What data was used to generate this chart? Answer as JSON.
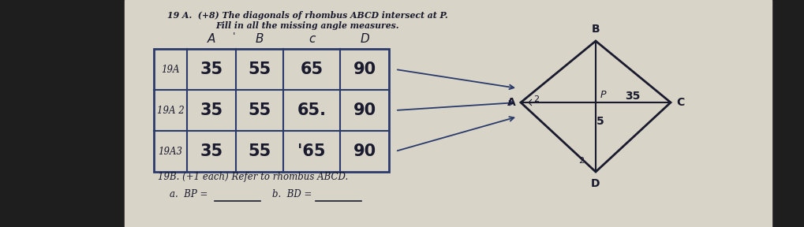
{
  "title_line1": "19 A.  (+8) The diagonals of rhombus ABCD intersect at P.",
  "title_line2": "Fill in all the missing angle measures.",
  "bg_dark": "#1e1e1e",
  "paper_color": "#d8d4c8",
  "table_row_labels": [
    "19A",
    "19A 2",
    "19A3"
  ],
  "col_headers": [
    "A",
    "B",
    "c",
    "D"
  ],
  "table_data": [
    [
      "35",
      "55",
      "65",
      "90"
    ],
    [
      "35",
      "55",
      "65.",
      "90"
    ],
    [
      "35",
      "55",
      "'65",
      "90"
    ]
  ],
  "part_b_line1": "19B. (+1 each) Refer to rhombus ABCD.",
  "part_b_a": "a.  BP =",
  "part_b_b": "b.  BD =",
  "rhombus_35": "35",
  "rhombus_5": "5",
  "rhombus_P": "P",
  "rhombus_A": "A",
  "rhombus_B": "B",
  "rhombus_C": "C",
  "rhombus_D": "D",
  "arrow_color": "#2a3a6a",
  "table_border_color": "#2a3a6a",
  "text_color": "#1a1a2e"
}
